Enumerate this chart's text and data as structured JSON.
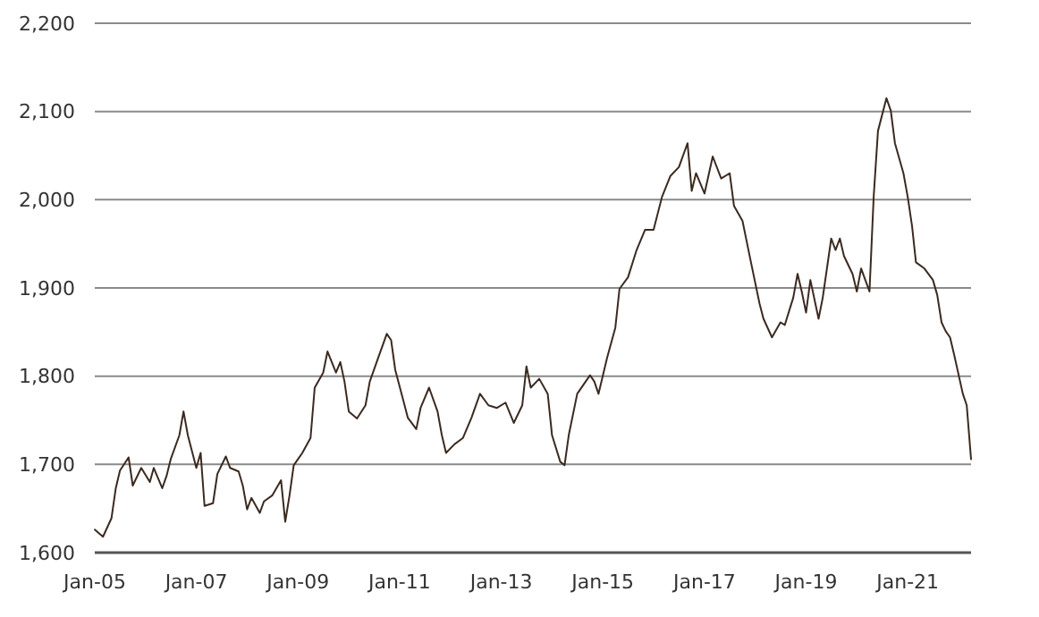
{
  "chart_data": {
    "type": "line",
    "grid": "y",
    "marker": "none",
    "line_style": "solid",
    "xlim": [
      "2005-01",
      "2022-04"
    ],
    "xticks": [
      {
        "value": "2005-01",
        "label": "Jan-05"
      },
      {
        "value": "2007-01",
        "label": "Jan-07"
      },
      {
        "value": "2009-01",
        "label": "Jan-09"
      },
      {
        "value": "2011-01",
        "label": "Jan-11"
      },
      {
        "value": "2013-01",
        "label": "Jan-13"
      },
      {
        "value": "2015-01",
        "label": "Jan-15"
      },
      {
        "value": "2017-01",
        "label": "Jan-17"
      },
      {
        "value": "2019-01",
        "label": "Jan-19"
      },
      {
        "value": "2021-01",
        "label": "Jan-21"
      }
    ],
    "ylim": [
      1600,
      2200
    ],
    "yticks": [
      {
        "value": 1600,
        "label": "1,600"
      },
      {
        "value": 1700,
        "label": "1,700"
      },
      {
        "value": 1800,
        "label": "1,800"
      },
      {
        "value": 1900,
        "label": "1,900"
      },
      {
        "value": 2000,
        "label": "2,000"
      },
      {
        "value": 2100,
        "label": "2,100"
      },
      {
        "value": 2200,
        "label": "2,200"
      }
    ],
    "series": [
      {
        "color": "#3b2a20",
        "x": [
          "2005-01",
          "2005-03",
          "2005-05",
          "2005-06",
          "2005-07",
          "2005-09",
          "2005-10",
          "2005-12",
          "2006-02",
          "2006-03",
          "2006-05",
          "2006-06",
          "2006-07",
          "2006-09",
          "2006-10",
          "2006-11",
          "2007-01",
          "2007-02",
          "2007-03",
          "2007-05",
          "2007-06",
          "2007-08",
          "2007-09",
          "2007-11",
          "2007-12",
          "2008-01",
          "2008-02",
          "2008-04",
          "2008-05",
          "2008-07",
          "2008-09",
          "2008-10",
          "2008-11",
          "2008-12",
          "2009-02",
          "2009-04",
          "2009-05",
          "2009-07",
          "2009-08",
          "2009-10",
          "2009-11",
          "2009-12",
          "2010-01",
          "2010-03",
          "2010-05",
          "2010-06",
          "2010-08",
          "2010-10",
          "2010-11",
          "2010-12",
          "2011-02",
          "2011-03",
          "2011-05",
          "2011-06",
          "2011-08",
          "2011-10",
          "2011-11",
          "2011-12",
          "2012-02",
          "2012-04",
          "2012-06",
          "2012-08",
          "2012-10",
          "2012-12",
          "2013-02",
          "2013-04",
          "2013-06",
          "2013-07",
          "2013-08",
          "2013-10",
          "2013-12",
          "2014-01",
          "2014-03",
          "2014-04",
          "2014-05",
          "2014-07",
          "2014-10",
          "2014-11",
          "2014-12",
          "2015-02",
          "2015-04",
          "2015-05",
          "2015-07",
          "2015-09",
          "2015-11",
          "2016-01",
          "2016-03",
          "2016-05",
          "2016-07",
          "2016-09",
          "2016-10",
          "2016-11",
          "2017-01",
          "2017-03",
          "2017-05",
          "2017-07",
          "2017-08",
          "2017-10",
          "2017-12",
          "2018-02",
          "2018-03",
          "2018-05",
          "2018-07",
          "2018-08",
          "2018-10",
          "2018-11",
          "2018-12",
          "2019-01",
          "2019-02",
          "2019-04",
          "2019-05",
          "2019-07",
          "2019-08",
          "2019-09",
          "2019-10",
          "2019-12",
          "2020-01",
          "2020-02",
          "2020-04",
          "2020-05",
          "2020-06",
          "2020-08",
          "2020-09",
          "2020-10",
          "2020-12",
          "2021-01",
          "2021-02",
          "2021-03",
          "2021-05",
          "2021-07",
          "2021-08",
          "2021-09",
          "2021-10",
          "2021-11",
          "2021-12",
          "2022-02",
          "2022-03",
          "2022-04"
        ],
        "values": [
          1626,
          1618,
          1639,
          1673,
          1693,
          1708,
          1676,
          1696,
          1680,
          1696,
          1673,
          1687,
          1706,
          1733,
          1760,
          1733,
          1696,
          1713,
          1653,
          1656,
          1689,
          1709,
          1696,
          1692,
          1676,
          1649,
          1662,
          1645,
          1658,
          1665,
          1682,
          1635,
          1665,
          1699,
          1713,
          1730,
          1787,
          1804,
          1828,
          1804,
          1816,
          1794,
          1760,
          1752,
          1767,
          1794,
          1821,
          1848,
          1841,
          1807,
          1770,
          1753,
          1740,
          1764,
          1787,
          1760,
          1733,
          1713,
          1723,
          1730,
          1753,
          1780,
          1767,
          1764,
          1770,
          1747,
          1767,
          1811,
          1787,
          1797,
          1780,
          1733,
          1703,
          1699,
          1733,
          1780,
          1801,
          1794,
          1780,
          1821,
          1855,
          1899,
          1912,
          1943,
          1966,
          1966,
          2003,
          2027,
          2037,
          2064,
          2010,
          2030,
          2007,
          2049,
          2024,
          2030,
          1993,
          1976,
          1929,
          1882,
          1865,
          1844,
          1861,
          1858,
          1889,
          1916,
          1896,
          1872,
          1909,
          1865,
          1889,
          1956,
          1943,
          1956,
          1936,
          1916,
          1896,
          1922,
          1896,
          2003,
          2078,
          2115,
          2101,
          2064,
          2030,
          2003,
          1970,
          1929,
          1922,
          1909,
          1892,
          1861,
          1851,
          1844,
          1824,
          1780,
          1767,
          1706
        ]
      }
    ]
  }
}
